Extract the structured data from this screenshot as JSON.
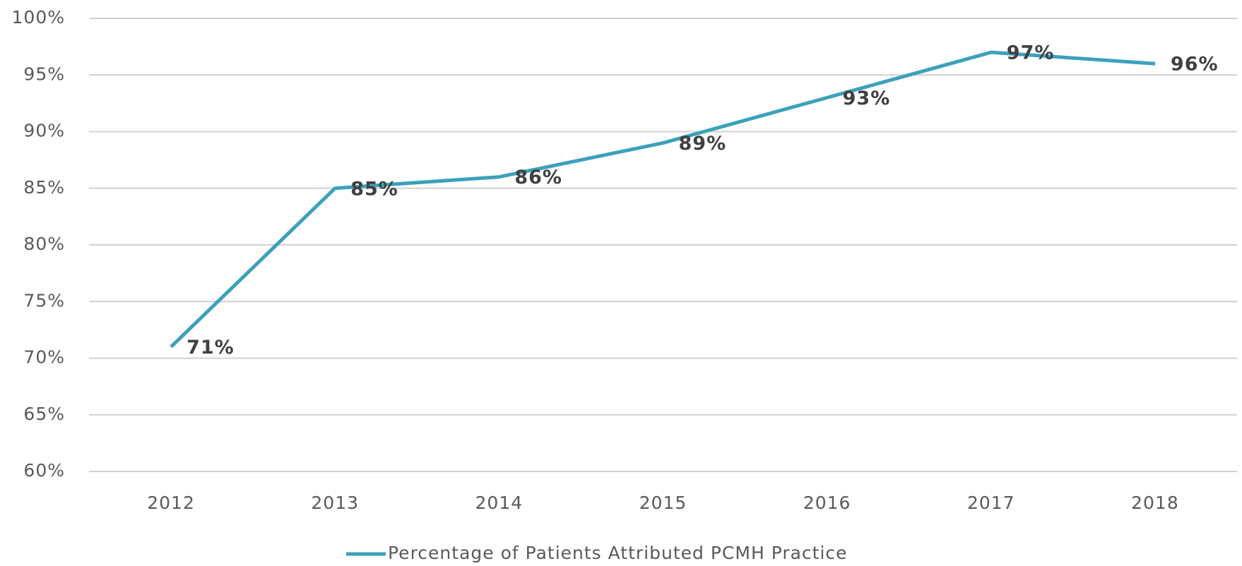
{
  "chart_data": {
    "type": "line",
    "categories": [
      "2012",
      "2013",
      "2014",
      "2015",
      "2016",
      "2017",
      "2018"
    ],
    "series": [
      {
        "name": "Percentage of Patients Attributed PCMH Practice",
        "color": "#3ba1ba",
        "values": [
          71,
          85,
          86,
          89,
          93,
          97,
          96
        ],
        "value_labels": [
          "71%",
          "85%",
          "86%",
          "89%",
          "93%",
          "97%",
          "96%"
        ]
      }
    ],
    "ylim": [
      60,
      100
    ],
    "yticks": [
      {
        "value": 60,
        "label": "60%"
      },
      {
        "value": 65,
        "label": "65%"
      },
      {
        "value": 70,
        "label": "70%"
      },
      {
        "value": 75,
        "label": "75%"
      },
      {
        "value": 80,
        "label": "80%"
      },
      {
        "value": 85,
        "label": "85%"
      },
      {
        "value": 90,
        "label": "90%"
      },
      {
        "value": 95,
        "label": "95%"
      },
      {
        "value": 100,
        "label": "100%"
      }
    ],
    "grid": true,
    "legend": "bottom"
  }
}
